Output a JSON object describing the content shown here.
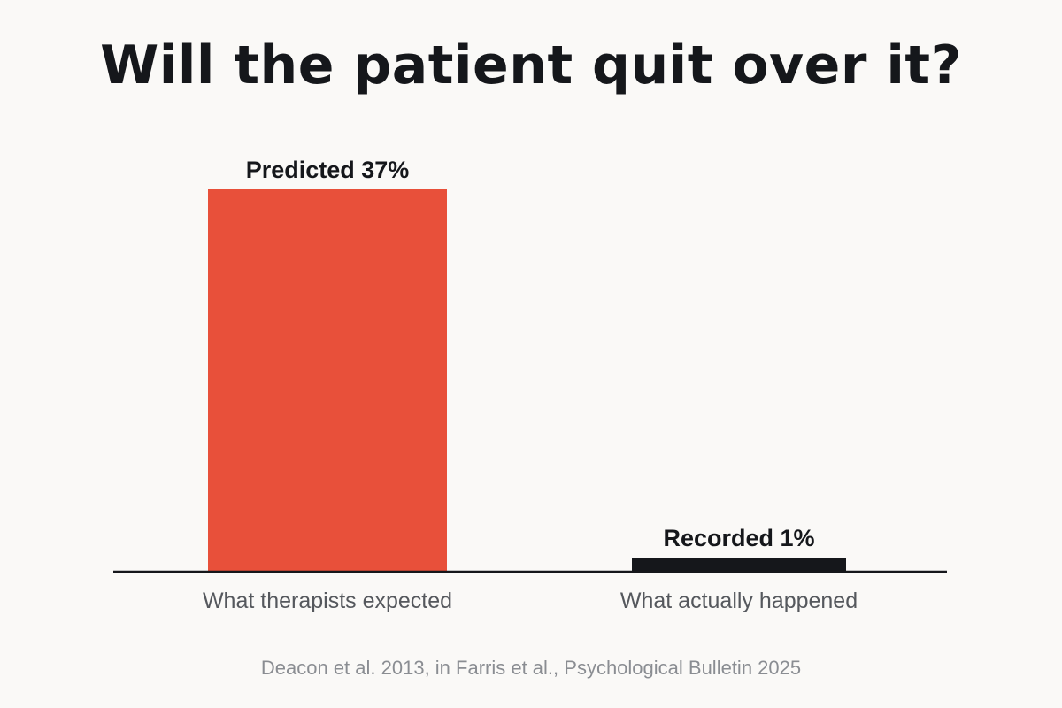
{
  "title": "Will the patient quit over it?",
  "source": "Deacon et al. 2013, in Farris et al., Psychological Bulletin 2025",
  "chart_data": {
    "type": "bar",
    "title": "Will the patient quit over it?",
    "xlabel": "",
    "ylabel": "",
    "ylim": [
      0,
      37
    ],
    "grid": false,
    "legend": "none",
    "categories": [
      "What therapists expected",
      "What actually happened"
    ],
    "values": [
      37,
      1
    ],
    "data_labels": [
      "Predicted 37%",
      "Recorded 1%"
    ],
    "colors": [
      "#e8503a",
      "#15171b"
    ]
  },
  "colors": {
    "background": "#faf9f7",
    "title": "#15171b",
    "axis": "#15171b",
    "category_label": "#55585d",
    "source": "#8a8d92"
  }
}
